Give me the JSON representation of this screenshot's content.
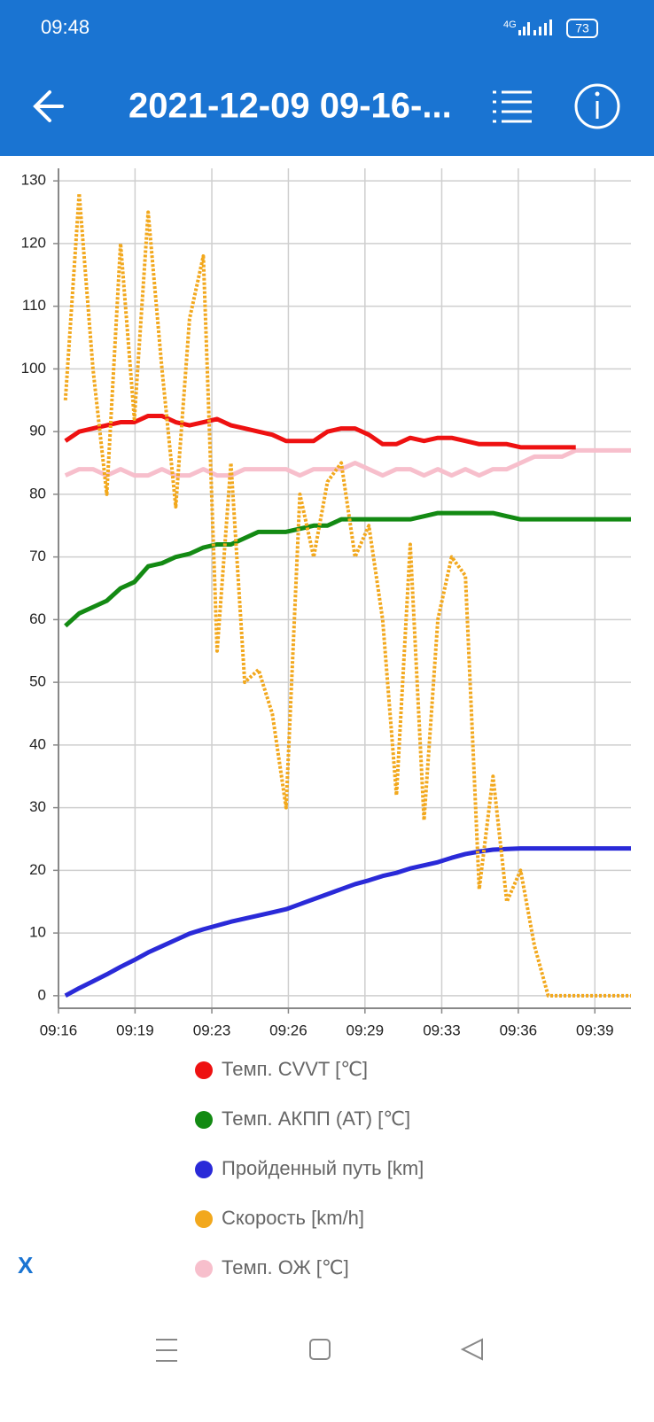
{
  "status_bar": {
    "time": "09:48",
    "network": "4G",
    "battery": "73"
  },
  "toolbar": {
    "title": "2021-12-09 09-16-..."
  },
  "chart_data": {
    "type": "line",
    "x": [
      556.8,
      557.4,
      558.0,
      558.6,
      559.2,
      559.8,
      560.4,
      561.0,
      561.6,
      562.2,
      562.8,
      563.4,
      564.0,
      564.6,
      565.2,
      565.8,
      566.4,
      567.0,
      567.6,
      568.2,
      568.8,
      569.4,
      570.0,
      570.6,
      571.2,
      571.8,
      572.4,
      573.0,
      573.6,
      574.2,
      574.8,
      575.4,
      576.0,
      576.6,
      577.2,
      577.8,
      578.4,
      579.0,
      579.6,
      580.2,
      580.8,
      581.4
    ],
    "xlim": [
      556.5,
      581.4
    ],
    "xticks": [
      {
        "value": 556.5,
        "label": "09:16"
      },
      {
        "value": 559.83,
        "label": "09:19"
      },
      {
        "value": 563.17,
        "label": "09:23"
      },
      {
        "value": 566.5,
        "label": "09:26"
      },
      {
        "value": 569.83,
        "label": "09:29"
      },
      {
        "value": 573.17,
        "label": "09:33"
      },
      {
        "value": 576.5,
        "label": "09:36"
      },
      {
        "value": 579.83,
        "label": "09:39"
      }
    ],
    "ylim": [
      -2,
      132
    ],
    "yticks": [
      0,
      10,
      20,
      30,
      40,
      50,
      60,
      70,
      80,
      90,
      100,
      110,
      120,
      130
    ],
    "grid": true,
    "series": [
      {
        "name": "Темп. CVVT [℃]",
        "color": "#ee1111",
        "values": [
          88.5,
          90,
          90.5,
          91,
          91.5,
          91.5,
          92.5,
          92.5,
          91.5,
          91,
          91.5,
          92,
          91,
          90.5,
          90,
          89.5,
          88.5,
          88.5,
          88.5,
          90,
          90.5,
          90.5,
          89.5,
          88,
          88,
          89,
          88.5,
          89,
          89,
          88.5,
          88,
          88,
          88,
          87.5,
          87.5,
          87.5,
          87.5,
          87.5,
          null,
          null,
          null,
          null
        ]
      },
      {
        "name": "Темп. АКПП (AT) [℃]",
        "color": "#138a13",
        "values": [
          59,
          61,
          62,
          63,
          65,
          66,
          68.5,
          69,
          70,
          70.5,
          71.5,
          72,
          72,
          73,
          74,
          74,
          74,
          74.5,
          75,
          75,
          76,
          76,
          76,
          76,
          76,
          76,
          76.5,
          77,
          77,
          77,
          77,
          77,
          76.5,
          76,
          76,
          76,
          76,
          76,
          76,
          76,
          76,
          76
        ]
      },
      {
        "name": "Пройденный путь [km]",
        "color": "#2a2ad8",
        "values": [
          0,
          1.2,
          2.3,
          3.4,
          4.6,
          5.7,
          6.9,
          7.9,
          8.9,
          9.9,
          10.6,
          11.2,
          11.8,
          12.3,
          12.8,
          13.3,
          13.8,
          14.6,
          15.4,
          16.2,
          17.0,
          17.8,
          18.4,
          19.1,
          19.6,
          20.3,
          20.8,
          21.3,
          22.0,
          22.6,
          23.0,
          23.3,
          23.4,
          23.5,
          23.5,
          23.5,
          23.5,
          23.5,
          23.5,
          23.5,
          23.5,
          23.5
        ]
      },
      {
        "name": "Скорость [km/h]",
        "color": "#f2a81d",
        "values": [
          95,
          128,
          100,
          80,
          120,
          92,
          125,
          100,
          78,
          108,
          118,
          55,
          85,
          50,
          52,
          45,
          30,
          80,
          70,
          82,
          85,
          70,
          75,
          60,
          32,
          72,
          28,
          60,
          70,
          67,
          17,
          35,
          15,
          20,
          8,
          0,
          0,
          0,
          0,
          0,
          0,
          0
        ]
      },
      {
        "name": "Темп. ОЖ [℃]",
        "color": "#f7bfcc",
        "values": [
          83,
          84,
          84,
          83,
          84,
          83,
          83,
          84,
          83,
          83,
          84,
          83,
          83,
          84,
          84,
          84,
          84,
          83,
          84,
          84,
          84,
          85,
          84,
          83,
          84,
          84,
          83,
          84,
          83,
          84,
          83,
          84,
          84,
          85,
          86,
          86,
          86,
          87,
          87,
          87,
          87,
          87
        ]
      }
    ]
  },
  "footer": {
    "close": "X"
  }
}
